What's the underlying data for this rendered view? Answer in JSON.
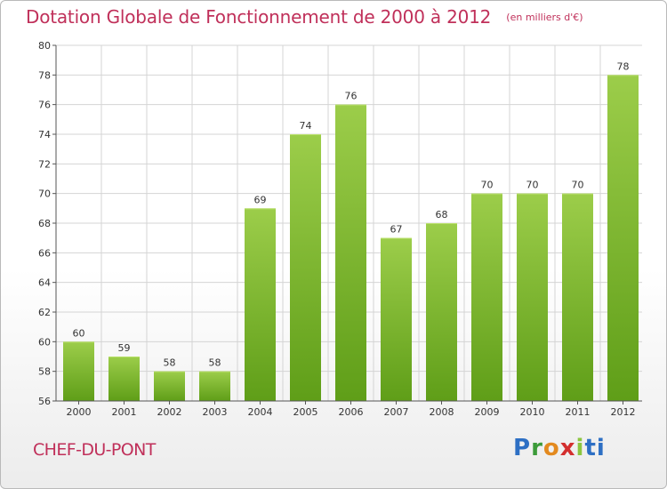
{
  "header": {
    "title": "Dotation Globale de Fonctionnement de 2000 à 2012",
    "subtitle": "(en milliers d'€)"
  },
  "footer": {
    "commune": "CHEF-DU-PONT",
    "brand": [
      "P",
      "r",
      "o",
      "x",
      "i",
      "t",
      "i"
    ]
  },
  "colors": {
    "title": "#c0305a",
    "bar_top": "#9ccd4a",
    "bar_bottom": "#5f9e18",
    "grid": "#d4d4d4"
  },
  "chart_data": {
    "type": "bar",
    "title": "Dotation Globale de Fonctionnement de 2000 à 2012",
    "subtitle": "(en milliers d'€)",
    "categories": [
      "2000",
      "2001",
      "2002",
      "2003",
      "2004",
      "2005",
      "2006",
      "2007",
      "2008",
      "2009",
      "2010",
      "2011",
      "2012"
    ],
    "values": [
      60,
      59,
      58,
      58,
      69,
      74,
      76,
      67,
      68,
      70,
      70,
      70,
      78
    ],
    "value_labels": [
      "60",
      "59",
      "58",
      "58",
      "69",
      "74",
      "76",
      "67",
      "68",
      "70",
      "70",
      "70",
      "78"
    ],
    "ylim": [
      56,
      80
    ],
    "yticks": [
      "56",
      "58",
      "60",
      "62",
      "64",
      "66",
      "68",
      "70",
      "72",
      "74",
      "76",
      "78",
      "80"
    ],
    "grid": true,
    "legend": "none"
  }
}
